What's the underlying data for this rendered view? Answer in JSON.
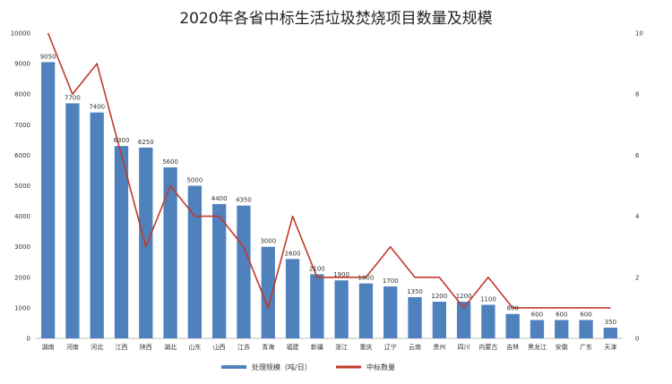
{
  "chart_data": {
    "type": "bar",
    "title": "2020年各省中标生活垃圾焚烧项目数量及规模",
    "xlabel": "",
    "ylabel": "",
    "categories": [
      "湖南",
      "河南",
      "河北",
      "江西",
      "陕西",
      "湖北",
      "山东",
      "山西",
      "江苏",
      "青海",
      "福建",
      "新疆",
      "浙江",
      "重庆",
      "辽宁",
      "云南",
      "贵州",
      "四川",
      "内蒙古",
      "吉林",
      "黑龙江",
      "安徽",
      "广东",
      "天津"
    ],
    "series": [
      {
        "name": "处理规模（吨/日）",
        "type": "bar",
        "axis": "left",
        "color": "#4f81bd",
        "values": [
          9050,
          7700,
          7400,
          6300,
          6250,
          5600,
          5000,
          4400,
          4350,
          3000,
          2600,
          2100,
          1900,
          1800,
          1700,
          1350,
          1200,
          1200,
          1100,
          800,
          600,
          600,
          600,
          350
        ]
      },
      {
        "name": "中标数量",
        "type": "line",
        "axis": "right",
        "color": "#c0392b",
        "values": [
          10,
          8,
          9,
          6,
          3,
          5,
          4,
          4,
          3,
          1,
          4,
          2,
          2,
          2,
          3,
          2,
          2,
          1,
          2,
          1,
          1,
          1,
          1,
          1
        ]
      }
    ],
    "ylim_left": [
      0,
      10000
    ],
    "yticks_left": [
      0,
      1000,
      2000,
      3000,
      4000,
      5000,
      6000,
      7000,
      8000,
      9000,
      10000
    ],
    "ylim_right": [
      0,
      10
    ],
    "yticks_right": [
      0,
      2,
      4,
      6,
      8,
      10
    ],
    "grid": false,
    "legend": "bottom-center",
    "data_labels_left": [
      "9050",
      "7700",
      "7400",
      "6300",
      "6250",
      "5600",
      "5000",
      "4400",
      "4350",
      "3000",
      "2600",
      "2100",
      "1900",
      "1800",
      "1700",
      "1350",
      "1200",
      "1200",
      "1100",
      "800",
      "600",
      "600",
      "600",
      "350"
    ]
  }
}
